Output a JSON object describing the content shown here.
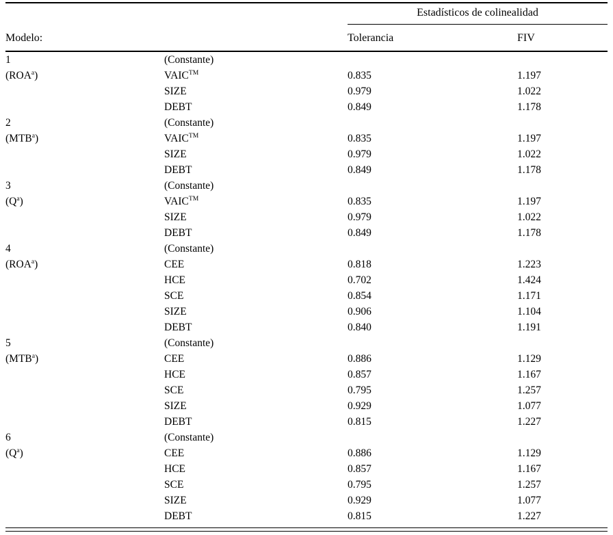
{
  "header": {
    "spanner": "Estadísticos de colinealidad",
    "model_col": "Modelo:",
    "tolerance_col": "Tolerancia",
    "fiv_col": "FIV"
  },
  "table": {
    "rows": [
      {
        "model": "1",
        "variable": "(Constante)",
        "tol": "",
        "fiv": ""
      },
      {
        "model": "(ROA",
        "model_sup": "a",
        "model_post": ")",
        "variable": "VAIC",
        "variable_sup": "TM",
        "tol": "0.835",
        "fiv": "1.197"
      },
      {
        "model": "",
        "variable": "SIZE",
        "tol": "0.979",
        "fiv": "1.022"
      },
      {
        "model": "",
        "variable": "DEBT",
        "tol": "0.849",
        "fiv": "1.178"
      },
      {
        "model": "2",
        "variable": "(Constante)",
        "tol": "",
        "fiv": ""
      },
      {
        "model": "(MTB",
        "model_sup": "a",
        "model_post": ")",
        "variable": "VAIC",
        "variable_sup": "TM",
        "tol": "0.835",
        "fiv": "1.197"
      },
      {
        "model": "",
        "variable": "SIZE",
        "tol": "0.979",
        "fiv": "1.022"
      },
      {
        "model": "",
        "variable": "DEBT",
        "tol": "0.849",
        "fiv": "1.178"
      },
      {
        "model": "3",
        "variable": "(Constante)",
        "tol": "",
        "fiv": ""
      },
      {
        "model": "(Q",
        "model_sup": "a",
        "model_post": ")",
        "variable": "VAIC",
        "variable_sup": "TM",
        "tol": "0.835",
        "fiv": "1.197"
      },
      {
        "model": "",
        "variable": "SIZE",
        "tol": "0.979",
        "fiv": "1.022"
      },
      {
        "model": "",
        "variable": "DEBT",
        "tol": "0.849",
        "fiv": "1.178"
      },
      {
        "model": "4",
        "variable": "(Constante)",
        "tol": "",
        "fiv": ""
      },
      {
        "model": "(ROA",
        "model_sup": "a",
        "model_post": ")",
        "variable": "CEE",
        "tol": "0.818",
        "fiv": "1.223"
      },
      {
        "model": "",
        "variable": "HCE",
        "tol": "0.702",
        "fiv": "1.424"
      },
      {
        "model": "",
        "variable": "SCE",
        "tol": "0.854",
        "fiv": "1.171"
      },
      {
        "model": "",
        "variable": "SIZE",
        "tol": "0.906",
        "fiv": "1.104"
      },
      {
        "model": "",
        "variable": "DEBT",
        "tol": "0.840",
        "fiv": "1.191"
      },
      {
        "model": "5",
        "variable": "(Constante)",
        "tol": "",
        "fiv": ""
      },
      {
        "model": "(MTB",
        "model_sup": "a",
        "model_post": ")",
        "variable": "CEE",
        "tol": "0.886",
        "fiv": "1.129"
      },
      {
        "model": "",
        "variable": "HCE",
        "tol": "0.857",
        "fiv": "1.167"
      },
      {
        "model": "",
        "variable": "SCE",
        "tol": "0.795",
        "fiv": "1.257"
      },
      {
        "model": "",
        "variable": "SIZE",
        "tol": "0.929",
        "fiv": "1.077"
      },
      {
        "model": "",
        "variable": "DEBT",
        "tol": "0.815",
        "fiv": "1.227"
      },
      {
        "model": "6",
        "variable": "(Constante)",
        "tol": "",
        "fiv": ""
      },
      {
        "model": "(Q",
        "model_sup": "a",
        "model_post": ")",
        "variable": "CEE",
        "tol": "0.886",
        "fiv": "1.129"
      },
      {
        "model": "",
        "variable": "HCE",
        "tol": "0.857",
        "fiv": "1.167"
      },
      {
        "model": "",
        "variable": "SCE",
        "tol": "0.795",
        "fiv": "1.257"
      },
      {
        "model": "",
        "variable": "SIZE",
        "tol": "0.929",
        "fiv": "1.077"
      },
      {
        "model": "",
        "variable": "DEBT",
        "tol": "0.815",
        "fiv": "1.227"
      }
    ]
  }
}
